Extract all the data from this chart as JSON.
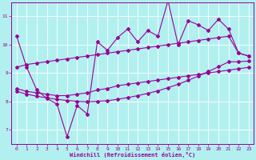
{
  "xlabel": "Windchill (Refroidissement éolien,°C)",
  "background_color": "#b2f0f0",
  "grid_color": "#ffffff",
  "line_color": "#990099",
  "xlim": [
    -0.5,
    23.5
  ],
  "ylim": [
    6.5,
    11.5
  ],
  "xticks": [
    0,
    1,
    2,
    3,
    4,
    5,
    6,
    7,
    8,
    9,
    10,
    11,
    12,
    13,
    14,
    15,
    16,
    17,
    18,
    19,
    20,
    21,
    22,
    23
  ],
  "yticks": [
    7,
    8,
    9,
    10,
    11
  ],
  "line1_x": [
    0,
    1,
    2,
    3,
    4,
    5,
    6,
    7,
    8,
    9,
    10,
    11,
    12,
    13,
    14,
    15,
    16,
    17,
    18,
    19,
    20,
    21,
    22,
    23
  ],
  "line1_y": [
    10.3,
    9.2,
    8.4,
    8.1,
    7.9,
    6.75,
    7.85,
    7.55,
    10.1,
    9.8,
    10.25,
    10.55,
    10.1,
    10.5,
    10.3,
    11.55,
    10.0,
    10.85,
    10.7,
    10.5,
    10.9,
    10.55,
    9.7,
    9.6
  ],
  "line2_x": [
    0,
    1,
    2,
    3,
    4,
    5,
    6,
    7,
    8,
    9,
    10,
    11,
    12,
    13,
    14,
    15,
    16,
    17,
    18,
    19,
    20,
    21,
    22,
    23
  ],
  "line2_y": [
    9.2,
    9.3,
    9.35,
    9.4,
    9.45,
    9.5,
    9.55,
    9.6,
    9.65,
    9.7,
    9.75,
    9.8,
    9.85,
    9.9,
    9.95,
    10.0,
    10.05,
    10.1,
    10.15,
    10.2,
    10.25,
    10.3,
    9.7,
    9.6
  ],
  "line3_x": [
    0,
    1,
    2,
    3,
    4,
    5,
    6,
    7,
    8,
    9,
    10,
    11,
    12,
    13,
    14,
    15,
    16,
    17,
    18,
    19,
    20,
    21,
    22,
    23
  ],
  "line3_y": [
    8.45,
    8.35,
    8.3,
    8.25,
    8.2,
    8.2,
    8.25,
    8.3,
    8.4,
    8.45,
    8.55,
    8.6,
    8.65,
    8.7,
    8.75,
    8.8,
    8.85,
    8.9,
    8.95,
    9.0,
    9.05,
    9.1,
    9.15,
    9.2
  ],
  "line4_x": [
    0,
    1,
    2,
    3,
    4,
    5,
    6,
    7,
    8,
    9,
    10,
    11,
    12,
    13,
    14,
    15,
    16,
    17,
    18,
    19,
    20,
    21,
    22,
    23
  ],
  "line4_y": [
    8.35,
    8.25,
    8.18,
    8.12,
    8.07,
    8.03,
    8.0,
    7.98,
    8.0,
    8.02,
    8.07,
    8.13,
    8.2,
    8.28,
    8.37,
    8.48,
    8.6,
    8.74,
    8.89,
    9.05,
    9.22,
    9.39,
    9.4,
    9.42
  ]
}
